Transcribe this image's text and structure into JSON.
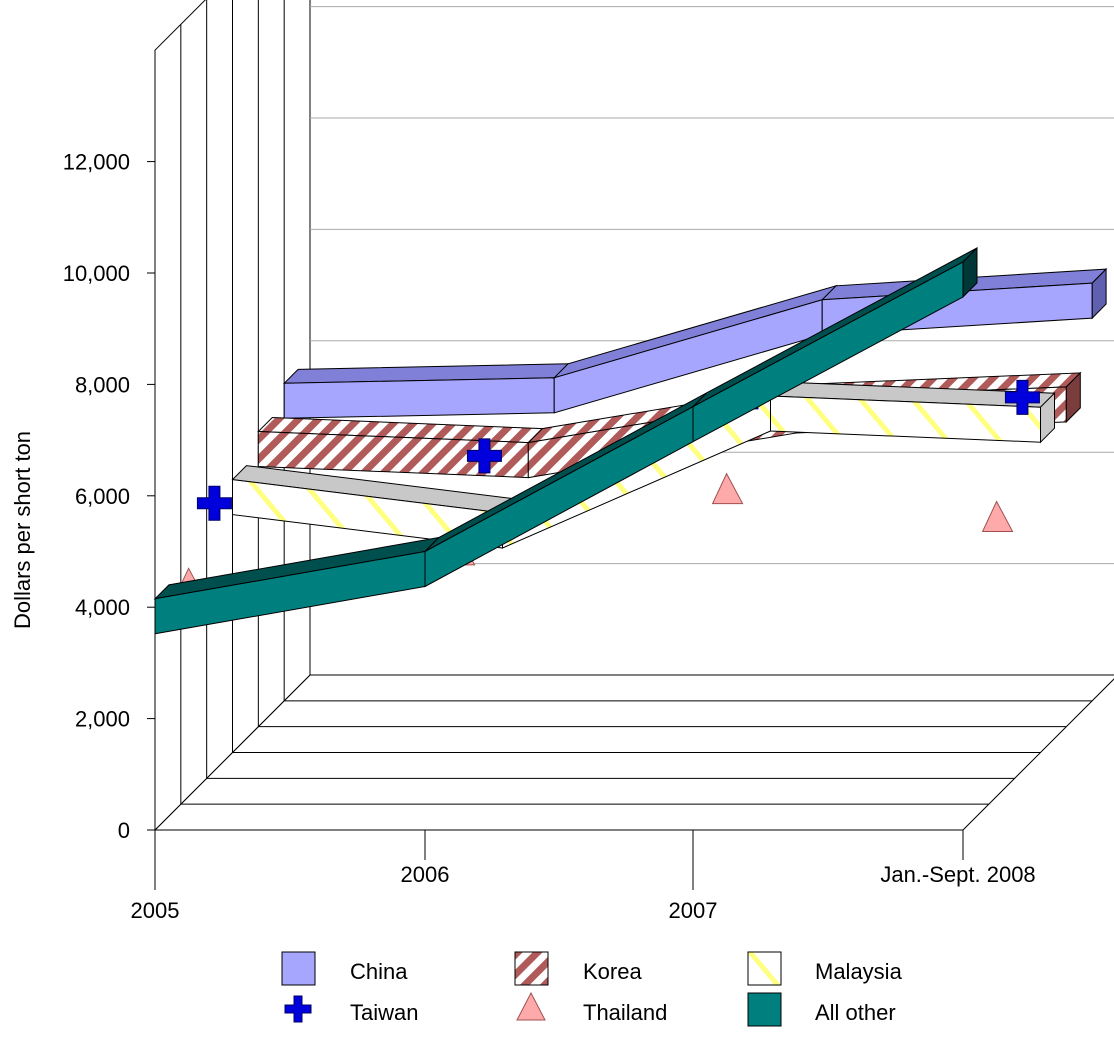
{
  "chart_data": {
    "type": "line",
    "title": "",
    "xlabel": "",
    "ylabel": "Dollars per short ton",
    "ylim": [
      0,
      12000
    ],
    "yticks": [
      "0",
      "2,000",
      "4,000",
      "6,000",
      "8,000",
      "10,000",
      "12,000"
    ],
    "ytick_values": [
      0,
      2000,
      4000,
      6000,
      8000,
      10000,
      12000
    ],
    "categories": [
      "2005",
      "2006",
      "2007",
      "Jan.-Sept. 2008"
    ],
    "three_d": true,
    "grid": true,
    "legend_position": "bottom",
    "series": [
      {
        "name": "China",
        "values": [
          5700,
          5800,
          7200,
          7500
        ],
        "color": "#a6a6ff"
      },
      {
        "name": "Korea",
        "values": [
          5300,
          5100,
          5900,
          6100
        ],
        "color": "#b05a5a"
      },
      {
        "name": "Malaysia",
        "values": [
          4900,
          4300,
          6400,
          6200
        ],
        "color": "#ffff80"
      },
      {
        "name": "Taiwan",
        "values": [
          4800,
          5650,
          6800,
          6700
        ],
        "color": "#0000dd"
      },
      {
        "name": "Thailand",
        "values": [
          3700,
          4300,
          5400,
          4900
        ],
        "color": "#ffaaaa"
      },
      {
        "name": "All other",
        "values": [
          4150,
          5000,
          7600,
          10200
        ],
        "color": "#007f7f"
      }
    ]
  }
}
